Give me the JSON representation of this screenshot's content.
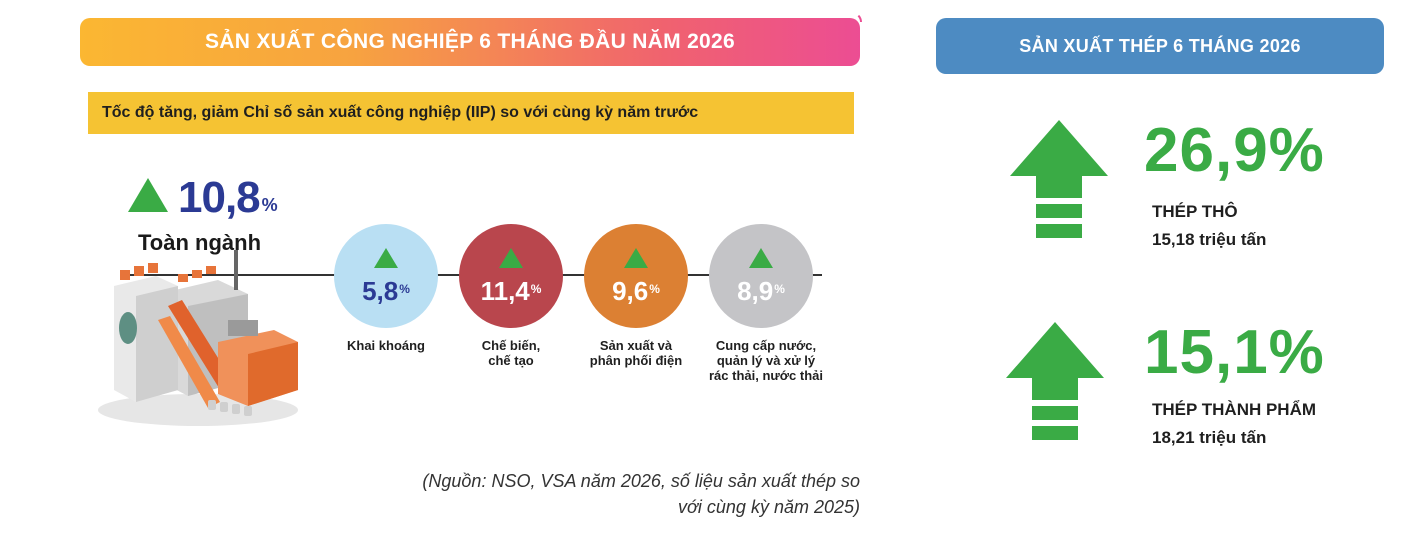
{
  "header": {
    "title": "SẢN XUẤT CÔNG NGHIỆP 6 THÁNG ĐẦU NĂM 2026",
    "subtitle": "Tốc độ tăng, giảm Chỉ số sản xuất công nghiệp (IIP) so với cùng kỳ năm trước"
  },
  "total": {
    "value": "10,8",
    "unit": "%",
    "label": "Toàn ngành"
  },
  "colors": {
    "accent_green": "#3aab45",
    "navy": "#2b3a94",
    "mining": "#b9dff3",
    "manufacturing": "#b9464d",
    "electricity": "#dc8033",
    "water": "#c4c4c7",
    "steel_header": "#4d8bc2"
  },
  "chart_data": [
    {
      "type": "bar",
      "title": "Tốc độ tăng, giảm Chỉ số sản xuất công nghiệp (IIP) so với cùng kỳ năm trước",
      "total": {
        "label": "Toàn ngành",
        "value": 10.8,
        "direction": "up"
      },
      "categories": [
        "Khai khoáng",
        "Chế biến, chế tạo",
        "Sản xuất và phân phối điện",
        "Cung cấp nước, quản lý và xử lý rác thải, nước thải"
      ],
      "values": [
        5.8,
        11.4,
        9.6,
        8.9
      ],
      "unit": "%"
    },
    {
      "type": "table",
      "title": "SẢN XUẤT THÉP 6 THÁNG 2026",
      "rows": [
        {
          "name": "THÉP THÔ",
          "growth": 26.9,
          "output": "15,18 triệu tấn",
          "direction": "up"
        },
        {
          "name": "THÉP THÀNH PHẨM",
          "growth": 15.1,
          "output": "18,21 triệu tấn",
          "direction": "up"
        }
      ]
    }
  ],
  "sectors": [
    {
      "value": "5,8",
      "unit": "%",
      "label": "Khai khoáng"
    },
    {
      "value": "11,4",
      "unit": "%",
      "label_lines": [
        "Chế biến,",
        "chế tạo"
      ]
    },
    {
      "value": "9,6",
      "unit": "%",
      "label_lines": [
        "Sản xuất và",
        "phân phối điện"
      ]
    },
    {
      "value": "8,9",
      "unit": "%",
      "label_lines": [
        "Cung cấp nước,",
        "quản lý và xử lý",
        "rác thải, nước thải"
      ]
    }
  ],
  "source": {
    "line1": "(Nguồn: NSO, VSA năm 2026, số liệu sản xuất thép so",
    "line2": "với cùng kỳ năm 2025)"
  },
  "steel": {
    "title": "SẢN XUẤT THÉP 6 THÁNG 2026",
    "items": [
      {
        "pct": "26,9%",
        "name": "THÉP THÔ",
        "amount": "15,18 triệu tấn"
      },
      {
        "pct": "15,1%",
        "name": "THÉP THÀNH PHẨM",
        "amount": "18,21 triệu tấn"
      }
    ]
  }
}
